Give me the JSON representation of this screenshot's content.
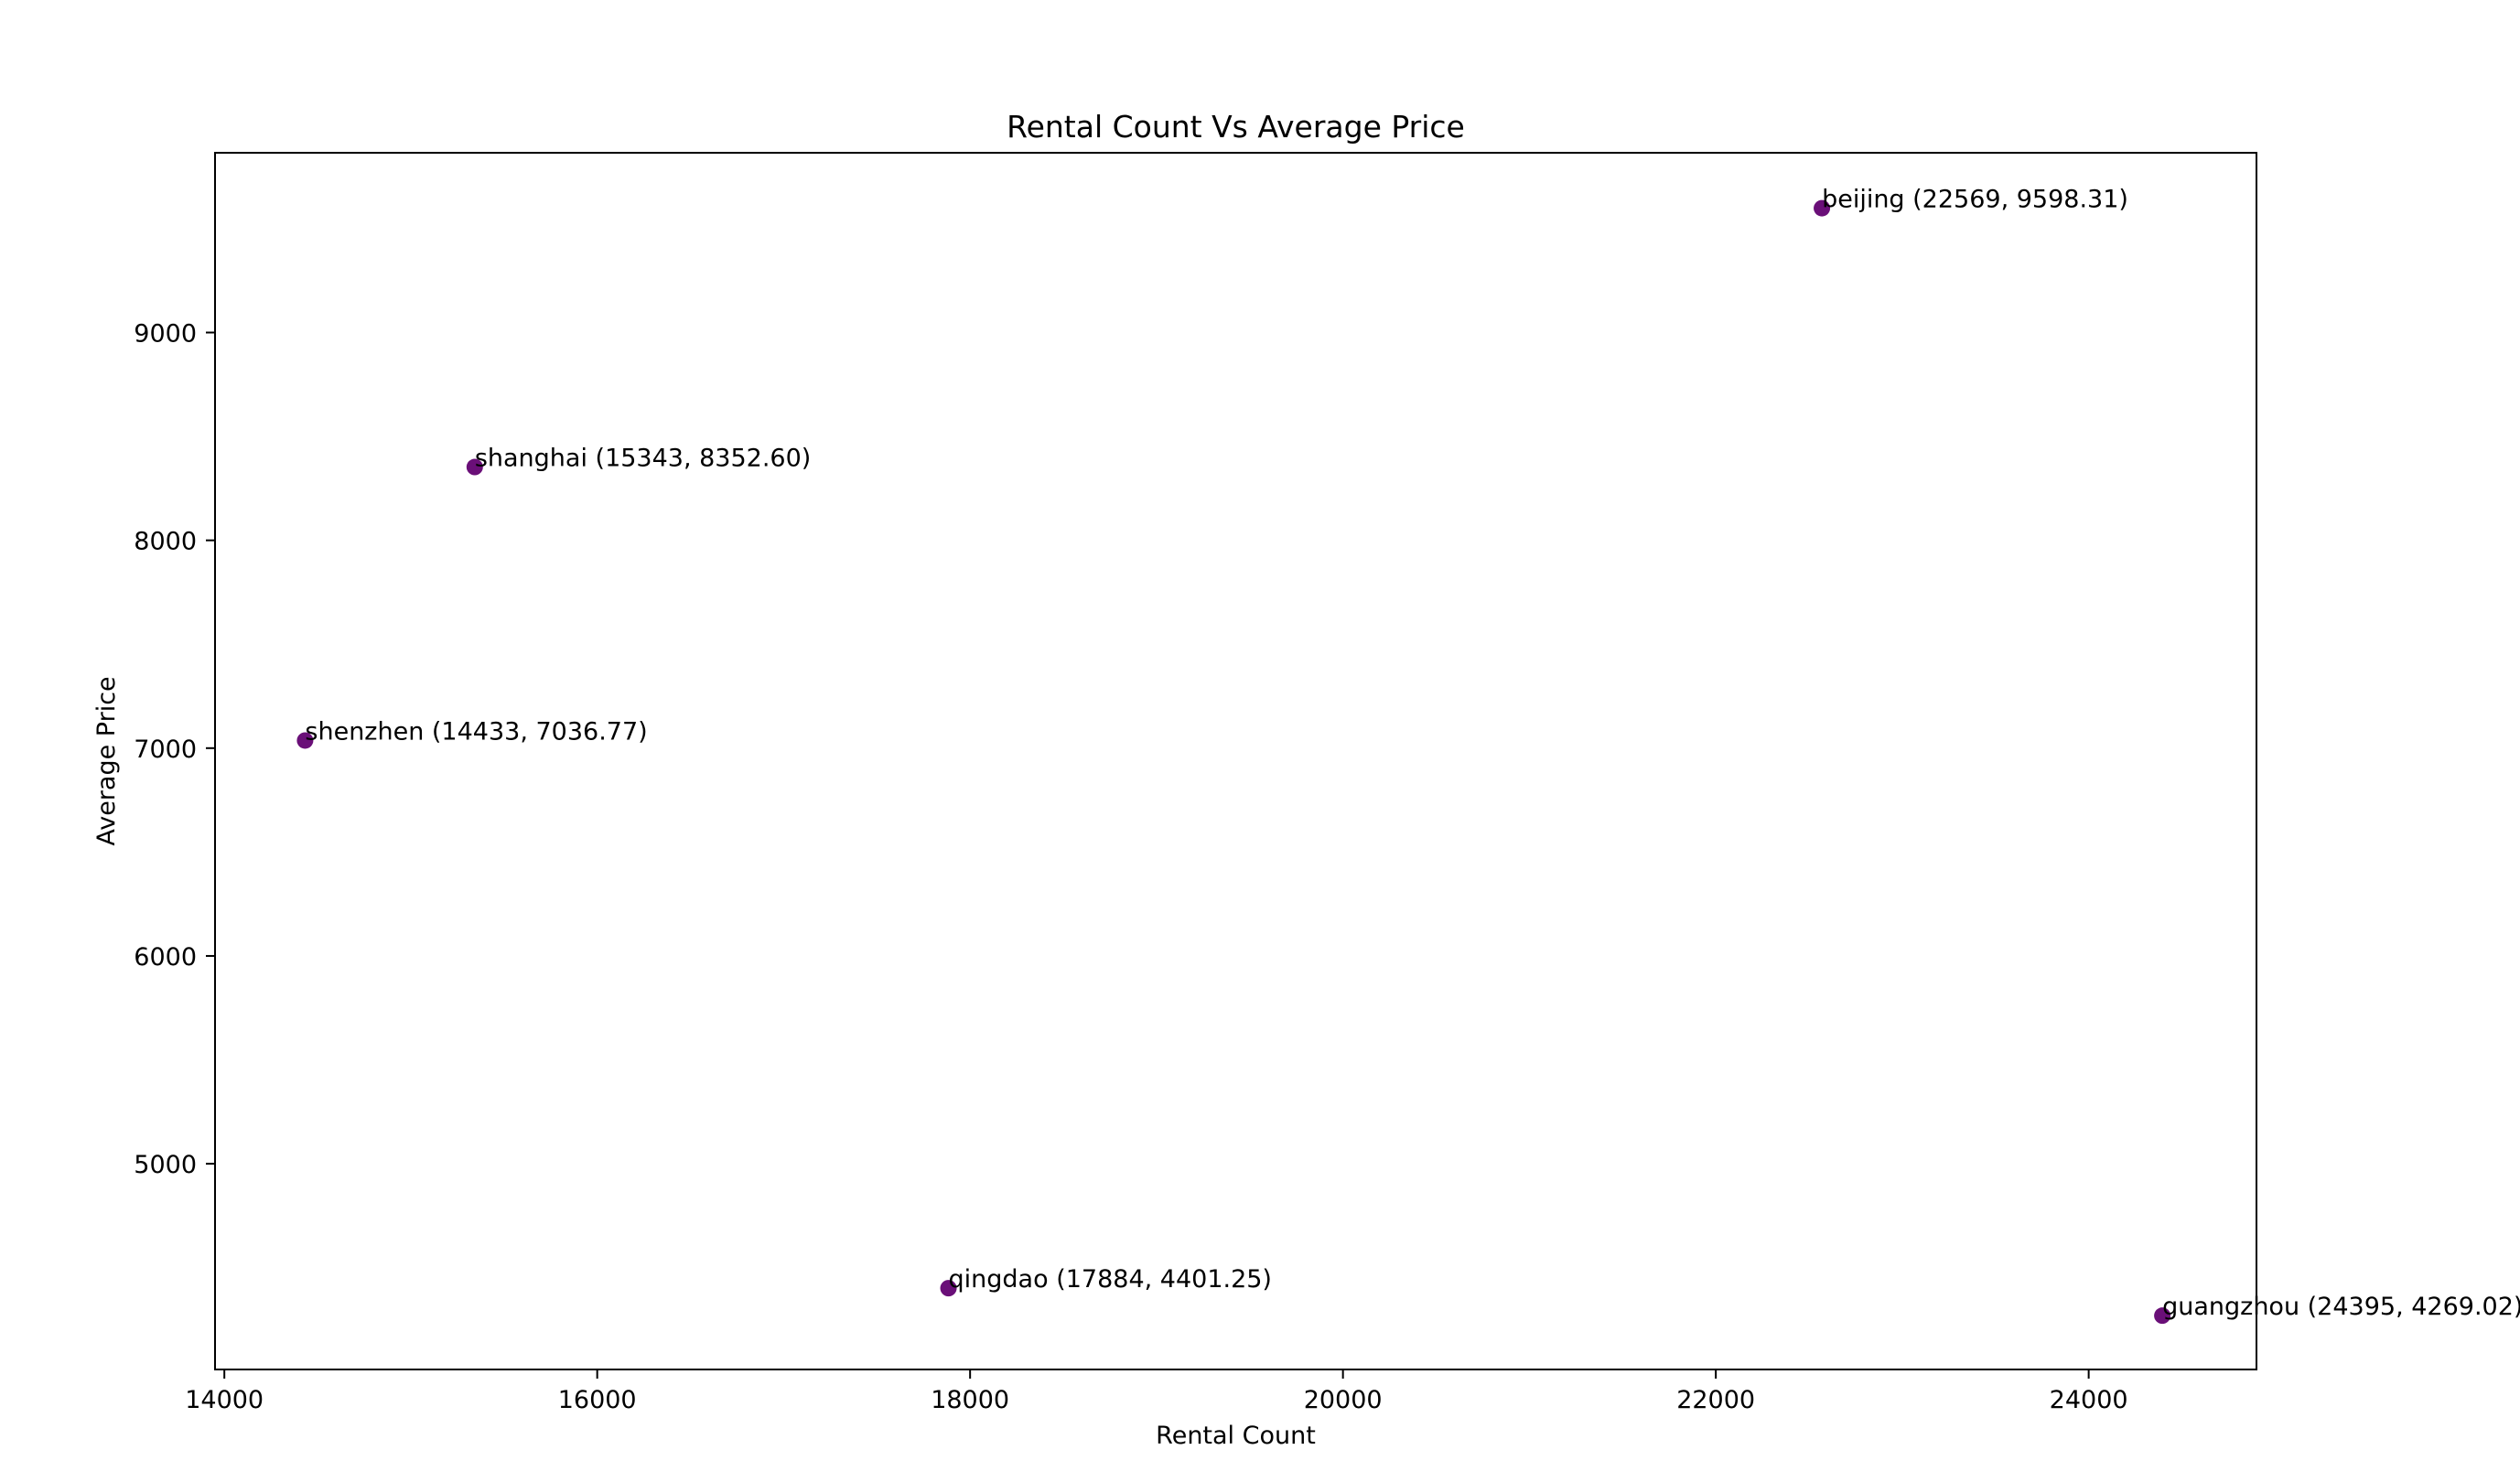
{
  "chart_data": {
    "type": "scatter",
    "title": "Rental Count Vs Average Price",
    "xlabel": "Rental Count",
    "ylabel": "Average Price",
    "xlim": [
      13950,
      24900
    ],
    "ylim": [
      4010,
      9865
    ],
    "xticks": [
      14000,
      16000,
      18000,
      20000,
      22000,
      24000
    ],
    "yticks": [
      5000,
      6000,
      7000,
      8000,
      9000
    ],
    "grid": false,
    "marker_color": "#6a0f78",
    "points": [
      {
        "x": 22569,
        "y": 9598.31,
        "label": "beijing (22569, 9598.31)"
      },
      {
        "x": 15343,
        "y": 8352.6,
        "label": "shanghai (15343, 8352.60)"
      },
      {
        "x": 14433,
        "y": 7036.77,
        "label": "shenzhen (14433, 7036.77)"
      },
      {
        "x": 17884,
        "y": 4401.25,
        "label": "qingdao (17884, 4401.25)"
      },
      {
        "x": 24395,
        "y": 4269.02,
        "label": "guangzhou (24395, 4269.02)"
      }
    ]
  }
}
